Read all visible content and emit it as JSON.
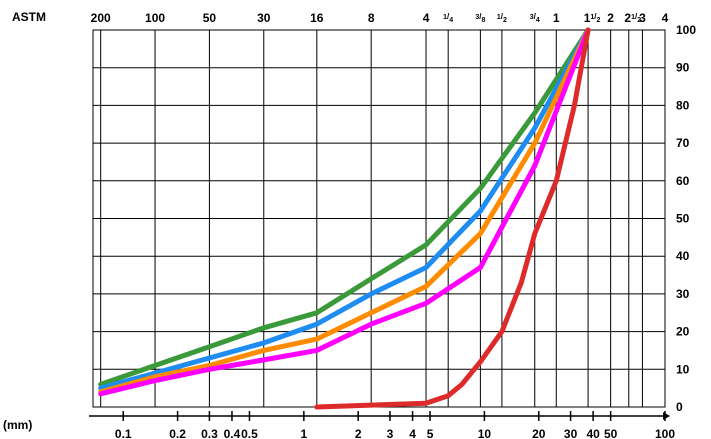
{
  "chart_data": {
    "type": "line",
    "title": "",
    "top_axis_title": "ASTM",
    "bottom_axis_title": "(mm)",
    "x_scale": "log",
    "xlim": [
      0.068,
      100
    ],
    "ylim": [
      0,
      100
    ],
    "grid": true,
    "y_ticks": [
      "0",
      "10",
      "20",
      "30",
      "40",
      "50",
      "60",
      "70",
      "80",
      "90",
      "100"
    ],
    "y_tick_values": [
      0,
      10,
      20,
      30,
      40,
      50,
      60,
      70,
      80,
      90,
      100
    ],
    "x_ticks": [
      {
        "value": 0.1,
        "label": "0.1"
      },
      {
        "value": 0.2,
        "label": "0.2"
      },
      {
        "value": 0.3,
        "label": "0.3"
      },
      {
        "value": 0.4,
        "label": "0.4"
      },
      {
        "value": 0.5,
        "label": "0.5"
      },
      {
        "value": 1,
        "label": "1"
      },
      {
        "value": 2,
        "label": "2"
      },
      {
        "value": 3,
        "label": "3"
      },
      {
        "value": 4,
        "label": "4"
      },
      {
        "value": 5,
        "label": "5"
      },
      {
        "value": 10,
        "label": "10"
      },
      {
        "value": 20,
        "label": "20"
      },
      {
        "value": 30,
        "label": "30"
      },
      {
        "value": 40,
        "label": "40"
      },
      {
        "value": 50,
        "label": "50"
      },
      {
        "value": 100,
        "label": "100"
      }
    ],
    "astm_ticks": [
      {
        "value": 0.075,
        "label": "200"
      },
      {
        "value": 0.15,
        "label": "100"
      },
      {
        "value": 0.3,
        "label": "50"
      },
      {
        "value": 0.6,
        "label": "30"
      },
      {
        "value": 1.18,
        "label": "16"
      },
      {
        "value": 2.36,
        "label": "8"
      },
      {
        "value": 4.75,
        "label": "4"
      },
      {
        "value": 6.3,
        "label": "1/4",
        "fraction": true,
        "num": "1",
        "den": "4"
      },
      {
        "value": 9.5,
        "label": "3/8",
        "fraction": true,
        "num": "3",
        "den": "8"
      },
      {
        "value": 12.5,
        "label": "1/2",
        "fraction": true,
        "num": "1",
        "den": "2"
      },
      {
        "value": 19,
        "label": "3/4",
        "fraction": true,
        "num": "3",
        "den": "4"
      },
      {
        "value": 25,
        "label": "1"
      },
      {
        "value": 37.5,
        "label": "1 1/2",
        "whole": "1",
        "num": "1",
        "den": "2"
      },
      {
        "value": 50,
        "label": "2"
      },
      {
        "value": 63,
        "label": "2 1/2",
        "whole": "2",
        "num": "1",
        "den": "2"
      },
      {
        "value": 75,
        "label": "3"
      },
      {
        "value": 100,
        "label": "4"
      }
    ],
    "series": [
      {
        "color": "#3a9a3a",
        "x": [
          0.075,
          0.15,
          0.3,
          0.6,
          1.18,
          2.36,
          4.75,
          9.5,
          19,
          37.5
        ],
        "y": [
          6,
          11,
          16,
          21,
          25,
          34,
          43,
          58,
          78,
          100
        ]
      },
      {
        "color": "#1e8cf0",
        "x": [
          0.075,
          0.15,
          0.3,
          0.6,
          1.18,
          2.36,
          4.75,
          9.5,
          19,
          37.5
        ],
        "y": [
          5,
          9,
          13,
          17,
          22,
          30,
          37,
          52,
          74,
          100
        ]
      },
      {
        "color": "#ff8c00",
        "x": [
          0.075,
          0.15,
          0.3,
          0.6,
          1.18,
          2.36,
          4.75,
          9.5,
          19,
          37.5
        ],
        "y": [
          4,
          8,
          11,
          15,
          18,
          25,
          32,
          46,
          70,
          100
        ]
      },
      {
        "color": "#ff00ff",
        "x": [
          0.075,
          0.15,
          0.3,
          0.6,
          1.18,
          2.36,
          4.75,
          9.5,
          19,
          37.5
        ],
        "y": [
          3.5,
          7,
          10,
          12.5,
          15,
          22,
          27.5,
          37,
          64,
          100
        ]
      },
      {
        "color": "#dd2b2b",
        "x": [
          1.18,
          2.36,
          4.75,
          6.3,
          7.5,
          9.5,
          12.5,
          16,
          19,
          25,
          31.5,
          37.5
        ],
        "y": [
          0,
          0.5,
          1,
          3,
          6,
          12,
          20,
          33,
          46,
          60,
          80,
          100
        ]
      }
    ]
  }
}
